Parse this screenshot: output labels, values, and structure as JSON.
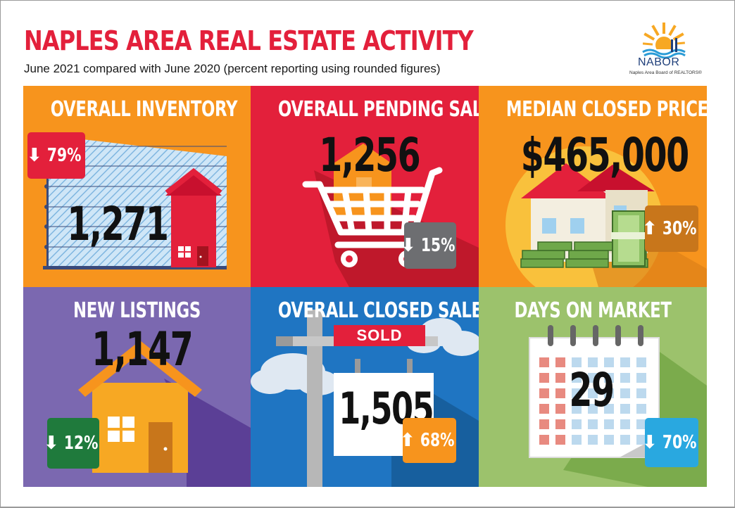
{
  "header": {
    "title": "NAPLES AREA REAL ESTATE ACTIVITY",
    "subtitle": "June 2021 compared with June 2020 (percent reporting using rounded figures)"
  },
  "logo": {
    "name": "NABOR",
    "tagline": "Naples Area Board of REALTORS®"
  },
  "tiles": [
    {
      "title": "OVERALL INVENTORY",
      "value": "1,271",
      "change": "79%",
      "direction": "down",
      "icon": "inventory-chart-house-icon",
      "bg": "#f7941d",
      "badge_color": "#e3203b"
    },
    {
      "title": "OVERALL PENDING SALES",
      "value": "1,256",
      "change": "15%",
      "direction": "down",
      "icon": "shopping-cart-house-icon",
      "bg": "#e3203b",
      "badge_color": "#6d6e71"
    },
    {
      "title": "MEDIAN CLOSED PRICE",
      "value": "$465,000",
      "change": "30%",
      "direction": "up",
      "icon": "house-money-icon",
      "bg": "#f7941d",
      "badge_color": "#c8761b"
    },
    {
      "title": "NEW LISTINGS",
      "value": "1,147",
      "change": "12%",
      "direction": "down",
      "icon": "house-icon",
      "bg": "#7b68b0",
      "badge_color": "#1f7a3c"
    },
    {
      "title": "OVERALL CLOSED SALES",
      "value": "1,505",
      "change": "68%",
      "direction": "up",
      "icon": "sold-sign-icon",
      "bg": "#1f75c2",
      "badge_color": "#f7941d",
      "sign_text": "SOLD"
    },
    {
      "title": "DAYS ON MARKET",
      "value": "29",
      "change": "70%",
      "direction": "down",
      "icon": "calendar-icon",
      "bg": "#9cc26c",
      "badge_color": "#29a8e0"
    }
  ],
  "arrows": {
    "down": "⬇",
    "up": "⬆"
  }
}
